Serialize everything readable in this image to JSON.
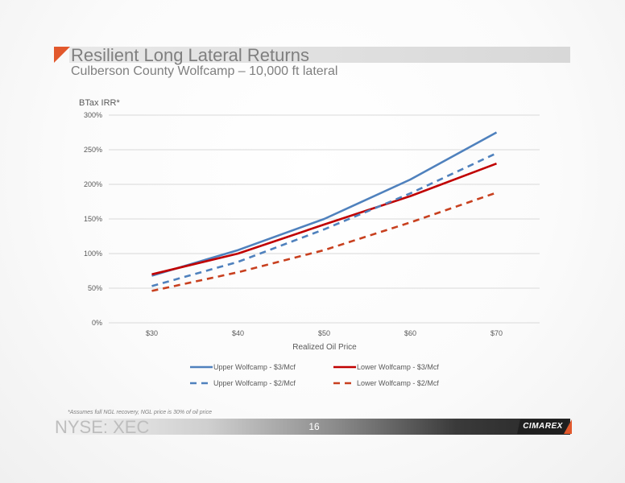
{
  "slide": {
    "title": "Resilient Long Lateral Returns",
    "subtitle": "Culberson County Wolfcamp – 10,000 ft lateral",
    "footnote": "*Assumes full NGL recovery, NGL price is 30% of oil price",
    "ticker": "NYSE: XEC",
    "page_number": "16",
    "logo_text": "CIMAREX",
    "accent_color": "#e2582c"
  },
  "chart_data": {
    "type": "line",
    "ylabel": "BTax IRR*",
    "xlabel": "Realized Oil Price",
    "categories": [
      "$30",
      "$40",
      "$50",
      "$60",
      "$70"
    ],
    "yticks": [
      "0%",
      "50%",
      "100%",
      "150%",
      "200%",
      "250%",
      "300%"
    ],
    "ylim": [
      0,
      300
    ],
    "grid": true,
    "legend_position": "bottom",
    "series": [
      {
        "name": "Upper Wolfcamp - $3/Mcf",
        "values": [
          68,
          105,
          150,
          207,
          275
        ],
        "color": "#4f81bd",
        "dash": "solid"
      },
      {
        "name": "Lower Wolfcamp - $3/Mcf",
        "values": [
          70,
          100,
          142,
          183,
          230
        ],
        "color": "#c00000",
        "dash": "solid"
      },
      {
        "name": "Upper Wolfcamp - $2/Mcf",
        "values": [
          53,
          88,
          135,
          187,
          245
        ],
        "color": "#4f81bd",
        "dash": "dashed"
      },
      {
        "name": "Lower Wolfcamp - $2/Mcf",
        "values": [
          46,
          73,
          105,
          145,
          188
        ],
        "color": "#c8401f",
        "dash": "dashed"
      }
    ]
  }
}
